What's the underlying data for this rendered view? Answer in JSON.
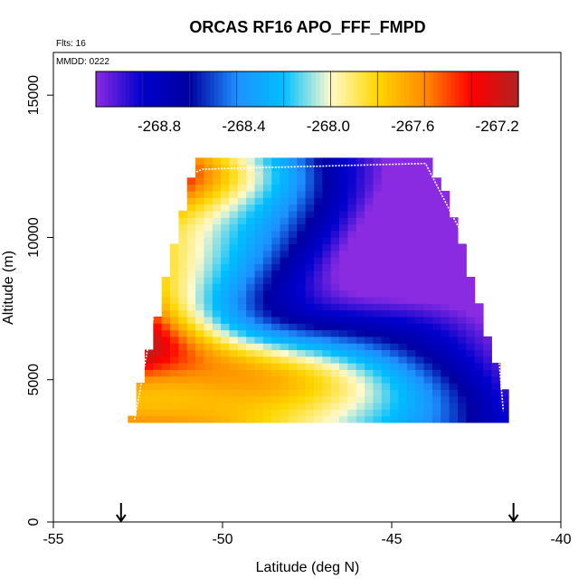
{
  "chart_data": {
    "type": "heatmap",
    "title": "ORCAS RF16 APO_FFF_FMPD",
    "subtitle": "Flts: 16",
    "annotation": "MMDD: 0222",
    "xlabel": "Latitude (deg N)",
    "ylabel": "Altitude (m)",
    "xlim": [
      -55,
      -40
    ],
    "ylim": [
      0,
      16500
    ],
    "x_ticks": [
      -55,
      -50,
      -45,
      -40
    ],
    "x_tick_labels": [
      "-55",
      "-50",
      "-45",
      "-40"
    ],
    "y_ticks": [
      0,
      5000,
      10000,
      15000
    ],
    "y_tick_labels": [
      "0",
      "5000",
      "10000",
      "15000"
    ],
    "colorbar": {
      "range": [
        -269.1,
        -267.1
      ],
      "ticks": [
        -268.8,
        -268.4,
        -268.0,
        -267.6,
        -267.2
      ],
      "tick_labels": [
        "-268.8",
        "-268.4",
        "-268.0",
        "-267.6",
        "-267.2"
      ],
      "colors": [
        "#8a2be2",
        "#0000cd",
        "#0000a0",
        "#1e90ff",
        "#00bfff",
        "#fffacd",
        "#ffd700",
        "#ff8c00",
        "#ff0000",
        "#b22222"
      ]
    },
    "grid": {
      "lat_range": [
        -52.8,
        -41.3
      ],
      "alt_range": [
        3500,
        12800
      ],
      "cols": 46,
      "rows": 40
    },
    "flight_markers_lat": [
      -53.0,
      -41.4
    ],
    "flight_track": [
      [
        -52.6,
        3600
      ],
      [
        -51.3,
        12000
      ],
      [
        -50.6,
        12400
      ],
      [
        -44.0,
        12600
      ],
      [
        -42.0,
        8000
      ],
      [
        -41.7,
        3900
      ]
    ]
  }
}
